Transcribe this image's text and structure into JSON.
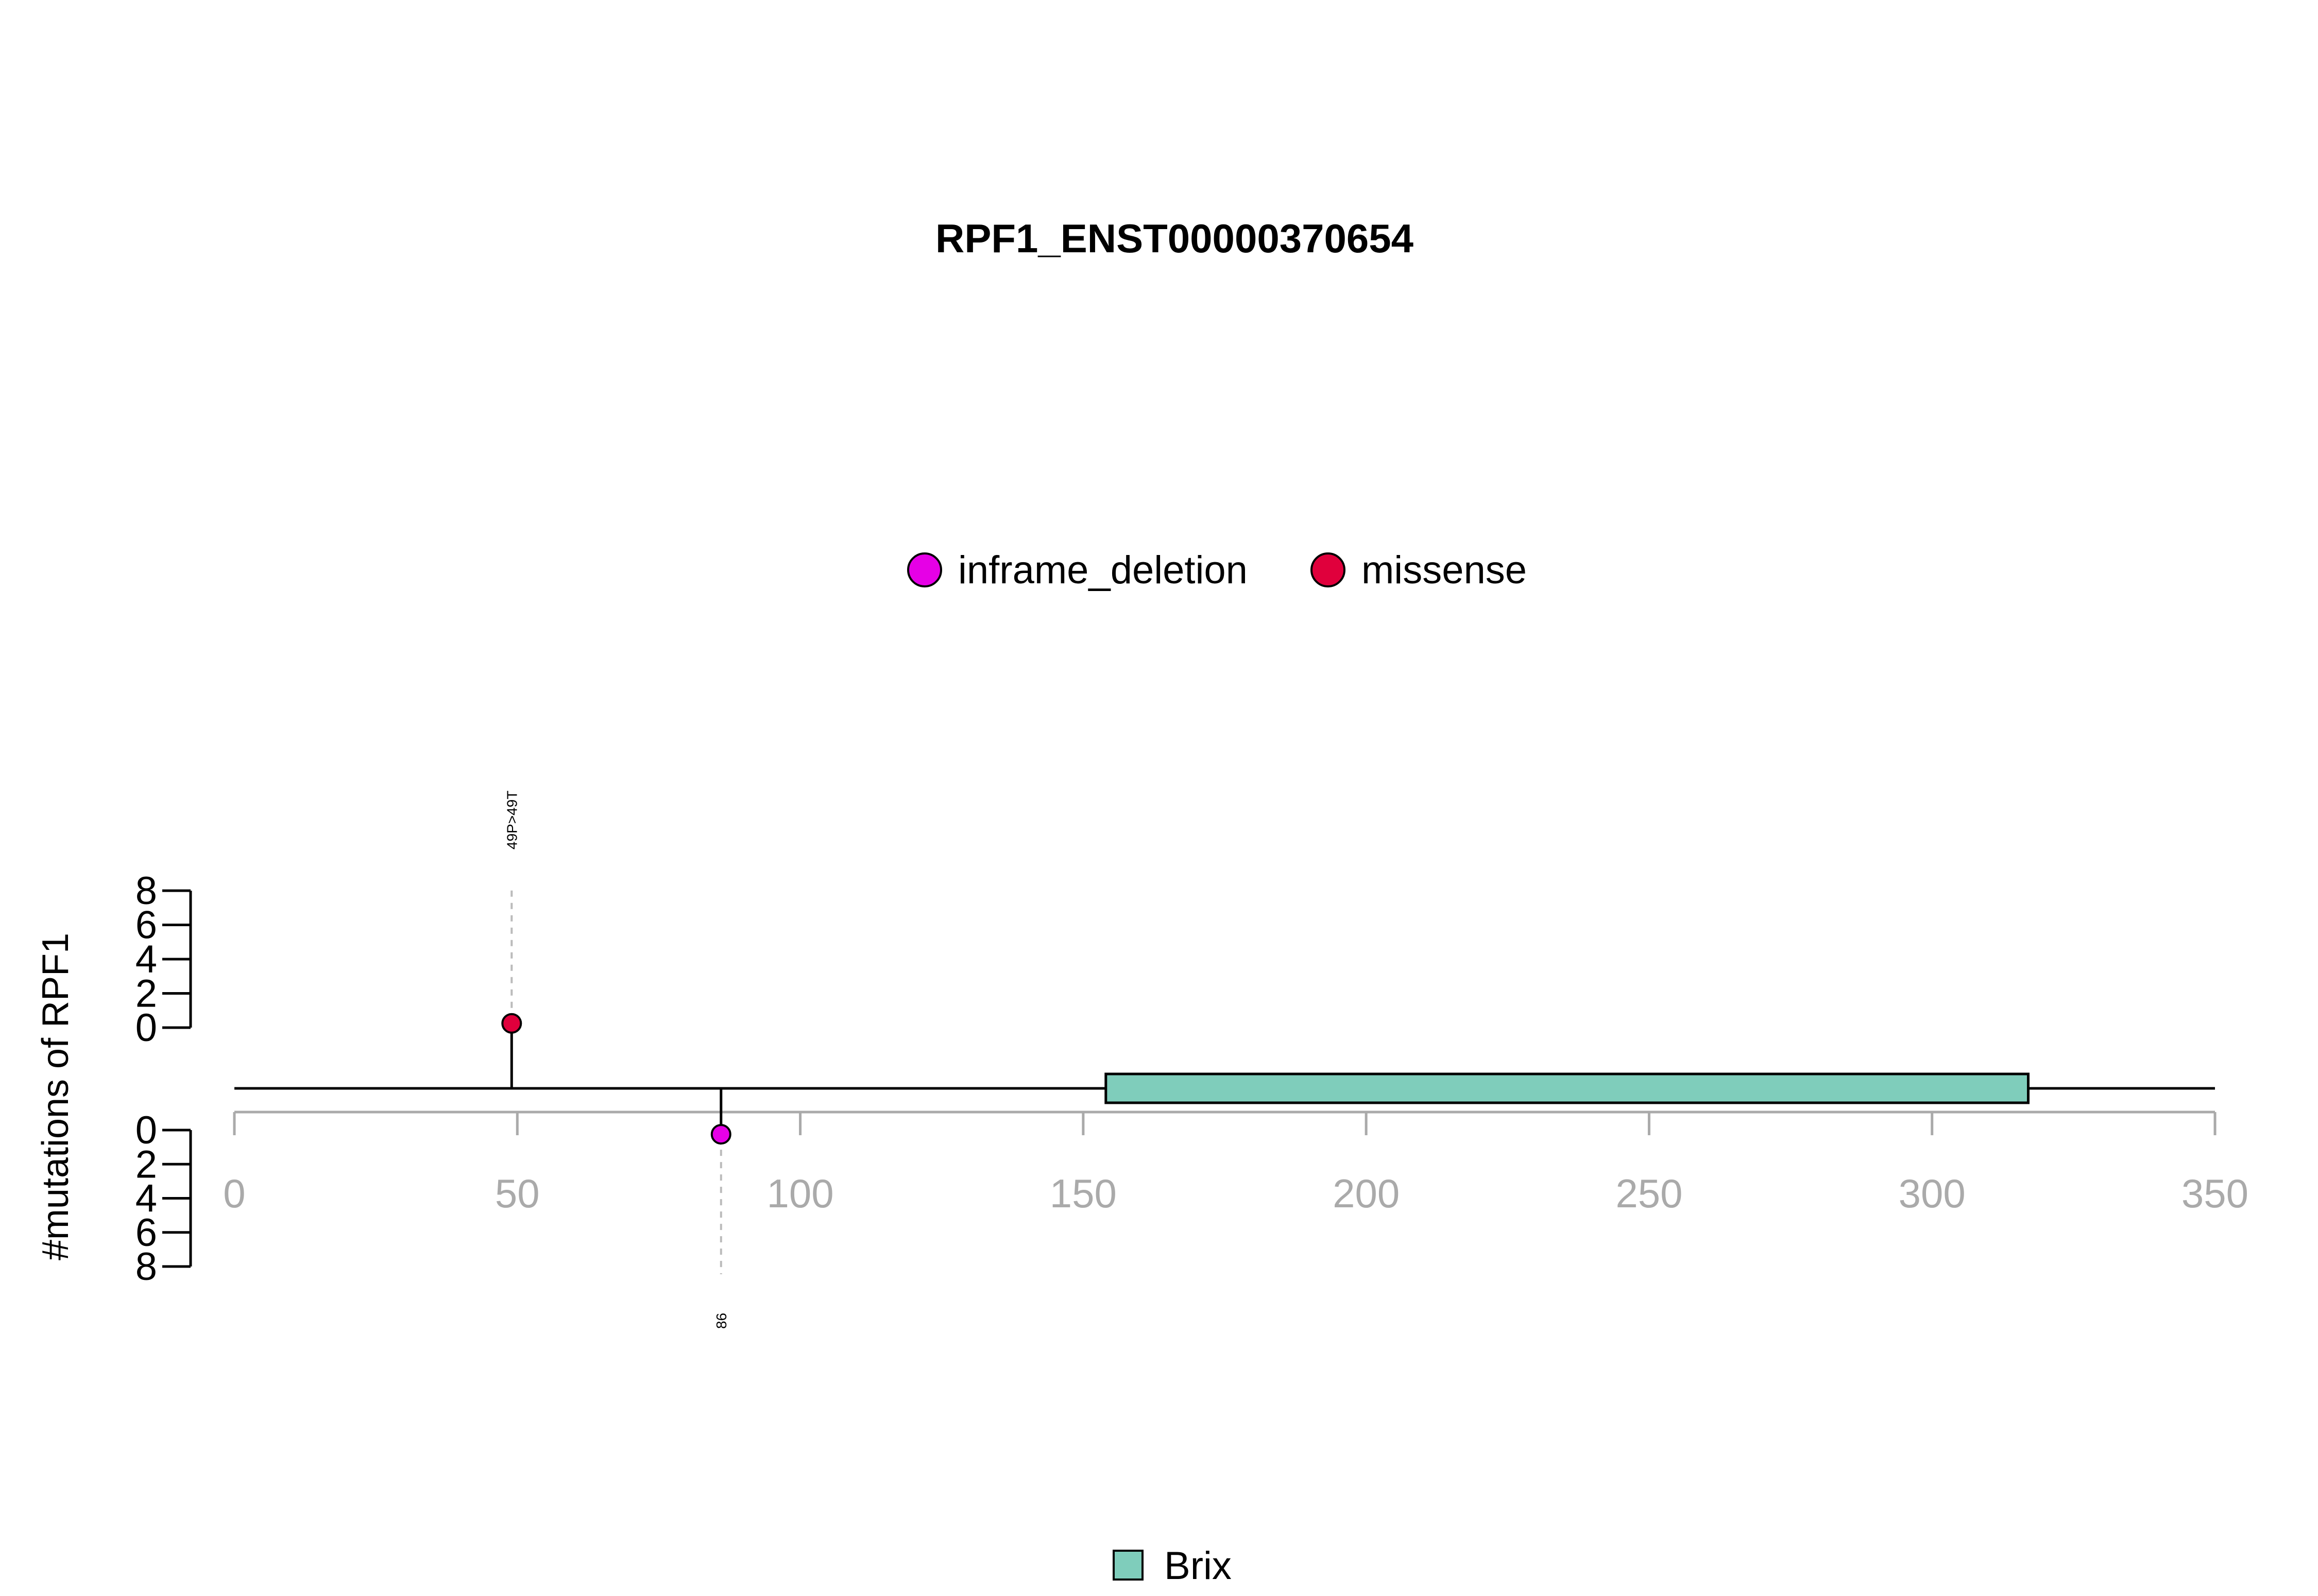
{
  "chart_data": {
    "type": "lollipop",
    "title": "RPF1_ENST00000370654",
    "ylabel": "#mutations of RPF1",
    "xlim": [
      0,
      350
    ],
    "x_ticks": [
      "0",
      "50",
      "100",
      "150",
      "200",
      "250",
      "300",
      "350"
    ],
    "y_ticks_top": [
      "0",
      "2",
      "4",
      "6",
      "8"
    ],
    "y_ticks_bottom": [
      "0",
      "2",
      "4",
      "6",
      "8"
    ],
    "ylim": [
      0,
      8
    ],
    "legend": [
      {
        "label": "inframe_deletion",
        "color": "#e600e6"
      },
      {
        "label": "missense",
        "color": "#e0003c"
      }
    ],
    "mutations": [
      {
        "position": 49,
        "count": 1,
        "type": "missense",
        "label": "49P>49T",
        "strand": "top",
        "color": "#e0003c"
      },
      {
        "position": 86,
        "count": 1,
        "type": "inframe_deletion",
        "label": "86",
        "strand": "bottom",
        "color": "#e600e6"
      }
    ],
    "domains": [
      {
        "name": "Brix",
        "start": 154,
        "end": 317,
        "color": "#7fcdbb"
      }
    ],
    "domain_legend": [
      {
        "label": "Brix",
        "color": "#7fcdbb"
      }
    ]
  }
}
